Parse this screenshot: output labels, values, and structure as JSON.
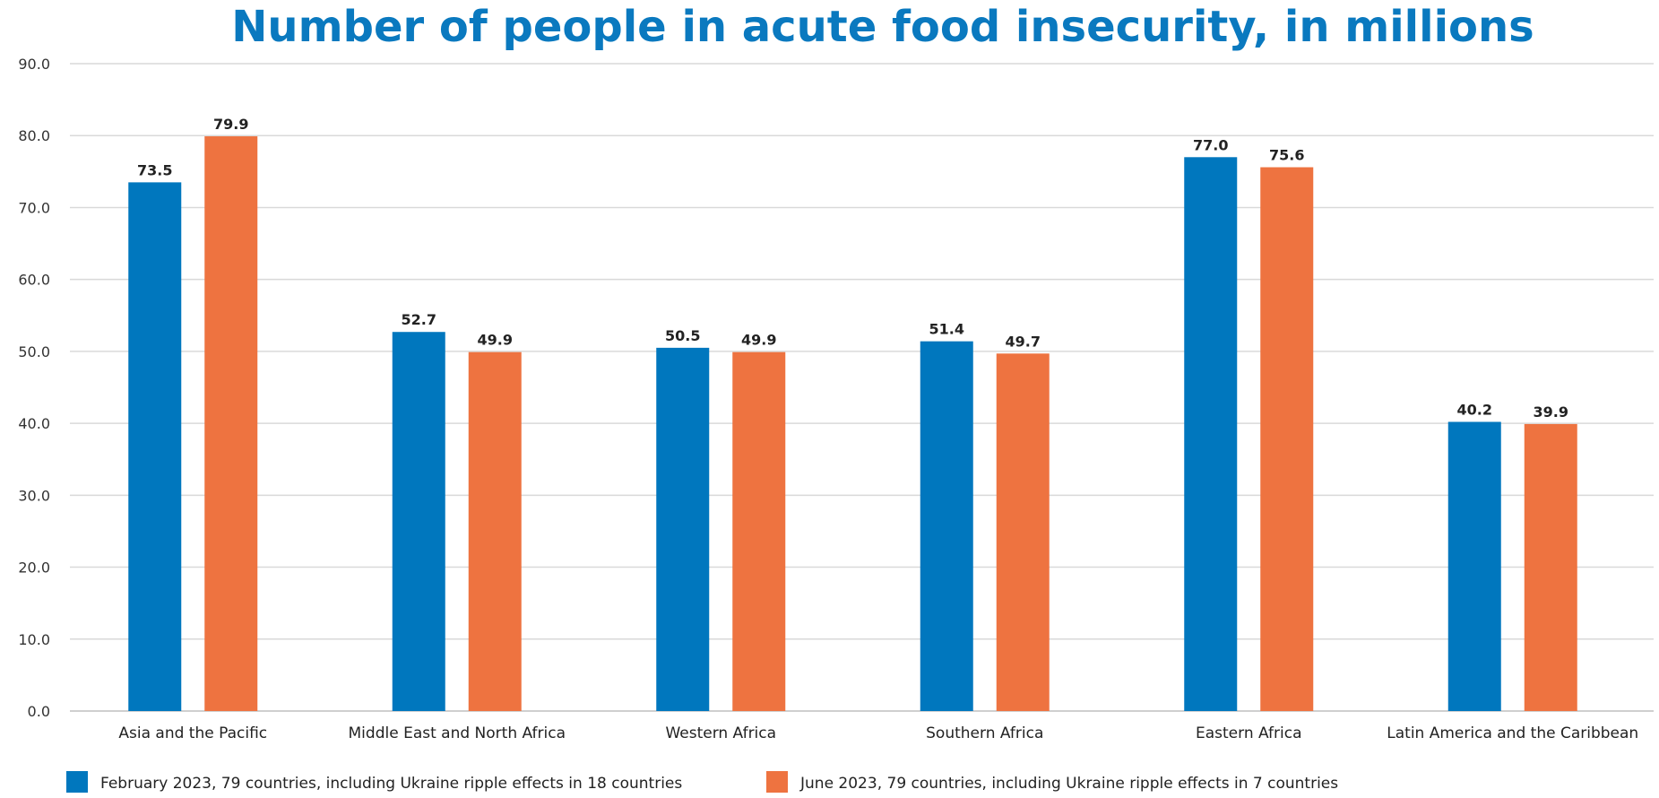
{
  "colors": {
    "title": "#0a79bf",
    "series_feb": "#0077be",
    "series_jun": "#ee7340",
    "grid": "#d9d9d9",
    "text": "#222222"
  },
  "chart_data": {
    "type": "bar",
    "title": "Number of people in acute food insecurity, in millions",
    "xlabel": "",
    "ylabel": "",
    "ylim": [
      0,
      90
    ],
    "yticks": [
      "0.0",
      "10.0",
      "20.0",
      "30.0",
      "40.0",
      "50.0",
      "60.0",
      "70.0",
      "80.0",
      "90.0"
    ],
    "grid": true,
    "legend_position": "bottom-left",
    "categories": [
      "Asia and the Pacific",
      "Middle East and North Africa",
      "Western Africa",
      "Southern Africa",
      "Eastern Africa",
      "Latin America and the Caribbean"
    ],
    "series": [
      {
        "name": "February 2023, 79 countries, including Ukraine ripple effects in 18 countries",
        "color": "#0077be",
        "values": [
          73.5,
          52.7,
          50.5,
          51.4,
          77.0,
          40.2
        ],
        "labels": [
          "73.5",
          "52.7",
          "50.5",
          "51.4",
          "77.0",
          "40.2"
        ]
      },
      {
        "name": "June 2023, 79 countries, including Ukraine ripple effects in 7 countries",
        "color": "#ee7340",
        "values": [
          79.9,
          49.9,
          49.9,
          49.7,
          75.6,
          39.9
        ],
        "labels": [
          "79.9",
          "49.9",
          "49.9",
          "49.7",
          "75.6",
          "39.9"
        ]
      }
    ]
  }
}
